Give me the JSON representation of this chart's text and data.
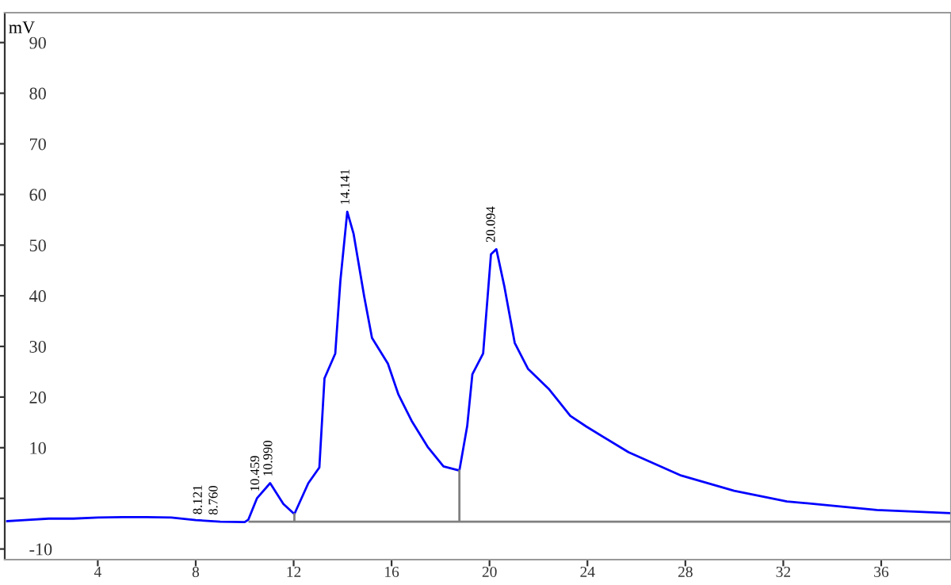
{
  "chart_data": {
    "type": "line",
    "ylabel": "mV",
    "xlim": [
      0.2,
      38.85
    ],
    "ylim": [
      -12.1,
      95.9
    ],
    "xticks": [
      4,
      8,
      12,
      16,
      20,
      24,
      28,
      32,
      36
    ],
    "yticks": [
      -10,
      {
        "value": 0,
        "label": null
      },
      10,
      20,
      30,
      40,
      50,
      60,
      70,
      80,
      90
    ],
    "grid": false,
    "marker": "none",
    "line_style": "solid",
    "series": [
      {
        "color": "#0000ff",
        "x": [
          0.3,
          1.0,
          2.0,
          3.0,
          4.0,
          5.0,
          6.0,
          7.0,
          8.0,
          9.0,
          10.0,
          10.15,
          10.5,
          11.04,
          11.58,
          12.03,
          12.6,
          13.05,
          13.26,
          13.7,
          13.91,
          14.19,
          14.45,
          14.88,
          15.2,
          15.85,
          16.28,
          16.82,
          17.47,
          18.12,
          18.77,
          19.09,
          19.3,
          19.74,
          20.06,
          20.28,
          20.6,
          21.03,
          21.57,
          22.44,
          23.3,
          23.95,
          25.68,
          27.83,
          29.99,
          32.15,
          34.31,
          35.82,
          38.8
        ],
        "values": [
          -4.5,
          -4.3,
          -4.0,
          -4.0,
          -3.8,
          -3.7,
          -3.7,
          -3.8,
          -4.3,
          -4.6,
          -4.7,
          -4.2,
          0.0,
          3.0,
          -1.1,
          -3.1,
          3.0,
          6.1,
          23.7,
          28.6,
          43.0,
          56.6,
          52.2,
          39.9,
          31.7,
          26.6,
          20.5,
          15.3,
          10.2,
          6.3,
          5.5,
          14.3,
          24.5,
          28.6,
          48.2,
          49.2,
          42.0,
          30.7,
          25.6,
          21.5,
          16.3,
          14.2,
          9.1,
          4.5,
          1.5,
          -0.6,
          -1.6,
          -2.3,
          -2.9
        ]
      },
      {
        "color": "#808080",
        "x": [
          10.2,
          12.03,
          12.03,
          12.03,
          18.77,
          18.77,
          18.77,
          38.8
        ],
        "values": [
          -4.6,
          -4.6,
          -3.1,
          -4.6,
          -4.6,
          5.5,
          -4.6,
          -4.6
        ]
      }
    ],
    "annotations": [
      {
        "text": "8.121",
        "x": 8.12,
        "y": -4.5
      },
      {
        "text": "8.760",
        "x": 8.76,
        "y": -4.6
      },
      {
        "text": "10.459",
        "x": 10.46,
        "y": 0.0
      },
      {
        "text": "10.990",
        "x": 10.99,
        "y": 3.0
      },
      {
        "text": "14.141",
        "x": 14.14,
        "y": 56.6
      },
      {
        "text": "20.094",
        "x": 20.09,
        "y": 49.2
      }
    ]
  }
}
